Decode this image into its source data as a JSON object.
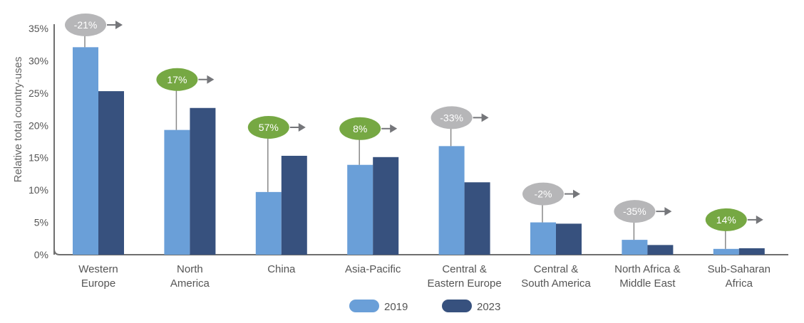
{
  "chart_data": {
    "type": "bar",
    "ylabel": "Relative total country-uses",
    "ylim": [
      0,
      35
    ],
    "yticks": [
      "0%",
      "5%",
      "10%",
      "15%",
      "20%",
      "25%",
      "30%",
      "35%"
    ],
    "categories": [
      [
        "Western",
        "Europe"
      ],
      [
        "North",
        "America"
      ],
      [
        "China"
      ],
      [
        "Asia-Pacific"
      ],
      [
        "Central &",
        "Eastern Europe"
      ],
      [
        "Central &",
        "South America"
      ],
      [
        "North Africa &",
        "Middle East"
      ],
      [
        "Sub-Saharan",
        "Africa"
      ]
    ],
    "series": [
      {
        "name": "2019",
        "color": "#6a9fd8",
        "values": [
          32.1,
          19.3,
          9.7,
          13.9,
          16.8,
          5.0,
          2.3,
          0.9
        ]
      },
      {
        "name": "2023",
        "color": "#37517e",
        "values": [
          25.3,
          22.7,
          15.3,
          15.1,
          11.2,
          4.8,
          1.5,
          1.0
        ]
      }
    ],
    "changes": [
      {
        "label": "-21%",
        "trend": "down"
      },
      {
        "label": "17%",
        "trend": "up"
      },
      {
        "label": "57%",
        "trend": "up"
      },
      {
        "label": "8%",
        "trend": "up"
      },
      {
        "label": "-33%",
        "trend": "down"
      },
      {
        "label": "-2%",
        "trend": "down"
      },
      {
        "label": "-35%",
        "trend": "down"
      },
      {
        "label": "14%",
        "trend": "up"
      }
    ],
    "colors": {
      "up": "#76a843",
      "down": "#b6b6b8",
      "axis": "#6f6f6f",
      "arrow": "#75767a"
    },
    "legend_position": "bottom"
  }
}
